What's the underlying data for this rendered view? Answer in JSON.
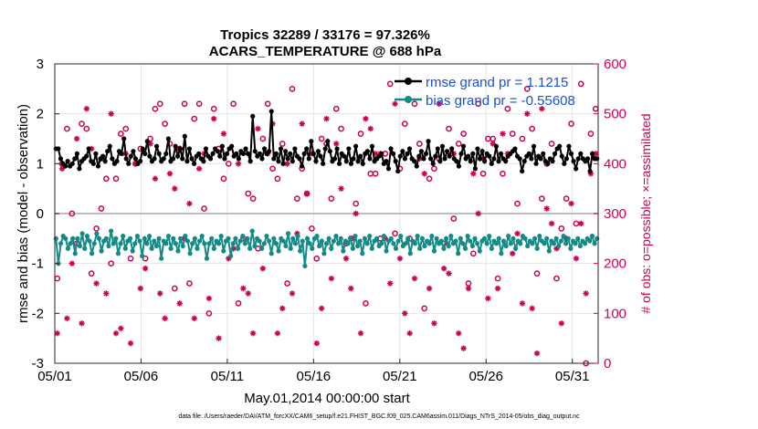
{
  "chart_data": {
    "type": "line",
    "title": "Tropics 32289 / 33176 = 97.326%",
    "subtitle": "ACARS_TEMPERATURE @ 688 hPa",
    "xlabel": "May.01,2014 00:00:00 start",
    "ylabel": "rmse and bias (model - observation)",
    "y2label": "# of obs: o=possible; ×=assimilated",
    "footnote": "data file: /Users/raeder/DAI/ATM_forcXX/CAM6_setup/f.e21.FHIST_BGC.f09_025.CAM6assim.011/Diags_NTrS_2014-05/obs_diag_output.nc",
    "xlim": [
      0,
      31.5
    ],
    "ylim": [
      -3,
      3
    ],
    "y2lim": [
      0,
      600
    ],
    "x_tick_values": [
      0,
      5,
      10,
      15,
      20,
      25,
      30
    ],
    "x_tick_labels": [
      "05/01",
      "05/06",
      "05/11",
      "05/16",
      "05/21",
      "05/26",
      "05/31"
    ],
    "y_ticks": [
      "-3",
      "-2",
      "-1",
      "0",
      "1",
      "2",
      "3"
    ],
    "y2_ticks": [
      "0",
      "100",
      "200",
      "300",
      "400",
      "500",
      "600"
    ],
    "legend": [
      {
        "name": "rmse grand pr = 1.1215",
        "color": "#000000"
      },
      {
        "name": "bias grand pr = -0.55608",
        "color": "#138a86"
      }
    ],
    "series": [
      {
        "name": "rmse",
        "color": "#000000",
        "axis": "left",
        "values": [
          1.3,
          1.3,
          1.1,
          1.0,
          0.95,
          1.05,
          0.95,
          1.0,
          1.1,
          1.2,
          0.9,
          1.05,
          1.1,
          1.15,
          1.3,
          1.05,
          1.0,
          1.2,
          0.95,
          1.1,
          1.15,
          1.05,
          1.25,
          1.35,
          1.1,
          1.0,
          1.05,
          1.25,
          1.2,
          1.5,
          1.1,
          1.0,
          1.15,
          1.25,
          1.1,
          1.0,
          1.05,
          1.3,
          1.2,
          1.45,
          1.15,
          1.05,
          1.1,
          1.35,
          1.2,
          1.05,
          1.1,
          1.2,
          1.5,
          1.05,
          1.1,
          1.35,
          1.15,
          1.3,
          1.1,
          1.55,
          1.05,
          1.3,
          1.1,
          1.0,
          1.15,
          1.2,
          1.1,
          1.05,
          1.3,
          1.15,
          1.1,
          1.2,
          1.3,
          1.25,
          1.15,
          1.35,
          1.1,
          1.2,
          1.3,
          1.35,
          1.15,
          1.2,
          1.1,
          1.25,
          1.2,
          1.3,
          1.2,
          1.05,
          1.95,
          1.25,
          1.15,
          1.2,
          1.1,
          1.3,
          1.2,
          1.25,
          2.05,
          1.1,
          1.2,
          1.05,
          1.3,
          1.0,
          1.25,
          1.1,
          1.2,
          1.05,
          1.3,
          1.15,
          1.1,
          0.95,
          1.2,
          1.3,
          1.1,
          1.45,
          1.2,
          1.05,
          1.25,
          1.15,
          1.0,
          1.3,
          1.45,
          1.25,
          1.05,
          1.1,
          1.3,
          1.0,
          1.2,
          1.15,
          1.05,
          1.3,
          1.0,
          1.1,
          1.35,
          1.05,
          1.15,
          1.0,
          1.2,
          1.25,
          1.1,
          1.35,
          1.05,
          1.1,
          1.15,
          1.2,
          1.0,
          1.05,
          0.9,
          1.3,
          1.2,
          1.05,
          0.85,
          1.15,
          1.25,
          1.1,
          1.2,
          1.3,
          1.1,
          1.05,
          0.95,
          1.15,
          1.25,
          1.1,
          1.2,
          1.45,
          1.1,
          1.0,
          1.15,
          1.3,
          1.05,
          1.35,
          1.1,
          1.25,
          1.15,
          1.3,
          1.1,
          1.05,
          0.95,
          1.2,
          1.35,
          1.1,
          1.15,
          1.05,
          1.2,
          0.9,
          1.3,
          1.1,
          1.25,
          1.05,
          1.2,
          1.15,
          1.0,
          1.1,
          1.35,
          1.05,
          1.2,
          1.1,
          1.05,
          1.15,
          1.2,
          1.25,
          1.3,
          1.15,
          1.1,
          0.85,
          1.05,
          1.15,
          1.2,
          1.1,
          1.35,
          1.0,
          1.15,
          1.1,
          1.2,
          1.05,
          1.0,
          1.1,
          1.05,
          1.2,
          1.3,
          1.35,
          1.15,
          1.0,
          1.1,
          1.35,
          1.2,
          1.05,
          0.9,
          1.1,
          1.2,
          1.1,
          1.05,
          1.1,
          0.85,
          1.2,
          1.1,
          1.1
        ]
      },
      {
        "name": "bias",
        "color": "#138a86",
        "axis": "left",
        "values": [
          -0.5,
          -1.0,
          -0.6,
          -0.45,
          -0.5,
          -0.7,
          -0.6,
          -0.5,
          -0.8,
          -0.5,
          -0.65,
          -0.4,
          -0.7,
          -0.45,
          -0.55,
          -0.8,
          -0.6,
          -0.4,
          -0.5,
          -0.75,
          -0.55,
          -0.5,
          -0.65,
          -0.35,
          -0.6,
          -0.5,
          -0.8,
          -0.6,
          -0.45,
          -0.7,
          -0.55,
          -0.5,
          -0.75,
          -0.6,
          -0.45,
          -0.55,
          -0.85,
          -0.5,
          -0.6,
          -0.45,
          -0.7,
          -0.55,
          -0.65,
          -0.5,
          -0.9,
          -0.55,
          -0.6,
          -0.45,
          -0.7,
          -0.5,
          -0.6,
          -0.75,
          -0.5,
          -0.65,
          -0.45,
          -0.55,
          -0.8,
          -0.6,
          -0.5,
          -0.7,
          -0.55,
          -0.45,
          -0.6,
          -0.9,
          -0.6,
          -0.5,
          -0.7,
          -0.55,
          -0.6,
          -0.45,
          -0.75,
          -0.55,
          -0.5,
          -0.85,
          -0.6,
          -0.5,
          -0.7,
          -0.55,
          -0.45,
          -0.6,
          -0.5,
          -0.7,
          -0.35,
          -0.65,
          -0.5,
          -0.55,
          -0.7,
          -0.6,
          -0.45,
          -0.55,
          -0.8,
          -0.5,
          -0.6,
          -0.75,
          -0.5,
          -0.55,
          -0.65,
          -0.4,
          -0.7,
          -0.5,
          -0.6,
          -0.45,
          -0.75,
          -0.55,
          -1.05,
          -0.5,
          -0.6,
          -0.7,
          -0.5,
          -0.45,
          -0.65,
          -0.55,
          -0.8,
          -0.6,
          -0.5,
          -0.7,
          -0.55,
          -0.45,
          -0.6,
          -0.5,
          -0.75,
          -0.55,
          -0.6,
          -0.5,
          -0.7,
          -0.45,
          -0.65,
          -0.55,
          -0.8,
          -0.5,
          -0.6,
          -0.45,
          -0.7,
          -0.55,
          -0.5,
          -0.65,
          -0.6,
          -0.45,
          -0.75,
          -0.55,
          -0.5,
          -0.6,
          -0.7,
          -0.55,
          -0.45,
          -0.65,
          -0.6,
          -0.5,
          -0.8,
          -0.55,
          -0.6,
          -0.45,
          -0.7,
          -0.5,
          -0.65,
          -0.55,
          -0.6,
          -0.45,
          -0.75,
          -0.5,
          -0.6,
          -0.55,
          -0.7,
          -0.5,
          -0.65,
          -0.45,
          -0.6,
          -0.55,
          -0.8,
          -0.5,
          -0.6,
          -0.7,
          -0.45,
          -0.55,
          -0.65,
          -0.5,
          -0.6,
          -0.75,
          -0.55,
          -0.5,
          -0.6,
          -0.45,
          -0.7,
          -0.55,
          -0.6,
          -0.5,
          -0.8,
          -0.55,
          -0.65,
          -0.45,
          -0.6,
          -0.5,
          -0.7,
          -0.55,
          -0.6,
          -0.45,
          -0.5,
          -0.65,
          -0.55,
          -0.6,
          -0.5,
          -0.7,
          -0.45,
          -0.55,
          -0.6,
          -0.5,
          -0.75,
          -0.55,
          -0.6,
          -0.5,
          -0.65,
          -0.55,
          -0.45,
          -0.6,
          -0.5,
          -0.7,
          -0.55,
          -0.6,
          -0.5,
          -0.65,
          -0.55,
          -0.6,
          -0.5,
          -0.55,
          -0.45,
          -0.6,
          -0.5
        ]
      },
      {
        "name": "obs possible (o)",
        "color": "#cc0055",
        "axis": "right",
        "marker": "o",
        "values": [
          170,
          400,
          470,
          300,
          240,
          480,
          470,
          180,
          270,
          310,
          370,
          200,
          370,
          460,
          470,
          210,
          400,
          430,
          210,
          450,
          510,
          520,
          480,
          440,
          150,
          430,
          520,
          160,
          490,
          520,
          310,
          100,
          510,
          430,
          370,
          400,
          520,
          120,
          250,
          340,
          330,
          230,
          450,
          520,
          390,
          370,
          440,
          160,
          550,
          330,
          390,
          340,
          270,
          210,
          450,
          440,
          330,
          510,
          470,
          240,
          250,
          320,
          460,
          120,
          380,
          380,
          250,
          420,
          560,
          260,
          390,
          480,
          250,
          520,
          440,
          110,
          370,
          390,
          410,
          240,
          470,
          290,
          440,
          460,
          160,
          220,
          520,
          380,
          450,
          450,
          170,
          380,
          510,
          460,
          320,
          450,
          550,
          470,
          180,
          330,
          400,
          440,
          170,
          270,
          330,
          480,
          280,
          560,
          0,
          460,
          510
        ]
      },
      {
        "name": "obs assimilated (x)",
        "color": "#cc0055",
        "axis": "right",
        "marker": "x",
        "values": [
          60,
          390,
          90,
          200,
          450,
          80,
          510,
          430,
          160,
          410,
          140,
          500,
          60,
          70,
          420,
          40,
          400,
          150,
          190,
          440,
          370,
          140,
          90,
          380,
          350,
          120,
          250,
          320,
          90,
          390,
          420,
          130,
          490,
          50,
          460,
          210,
          230,
          400,
          150,
          140,
          60,
          470,
          190,
          420,
          480,
          60,
          110,
          400,
          140,
          260,
          480,
          340,
          420,
          40,
          110,
          490,
          170,
          440,
          350,
          210,
          150,
          300,
          60,
          490,
          470,
          420,
          420,
          250,
          160,
          520,
          210,
          100,
          60,
          170,
          410,
          380,
          150,
          80,
          520,
          190,
          180,
          420,
          60,
          30,
          150,
          380,
          300,
          410,
          130,
          440,
          150,
          460,
          420,
          220,
          260,
          120,
          500,
          110,
          20,
          510,
          310,
          280,
          230,
          80,
          250,
          320,
          210,
          280,
          140,
          380,
          420
        ]
      }
    ]
  }
}
